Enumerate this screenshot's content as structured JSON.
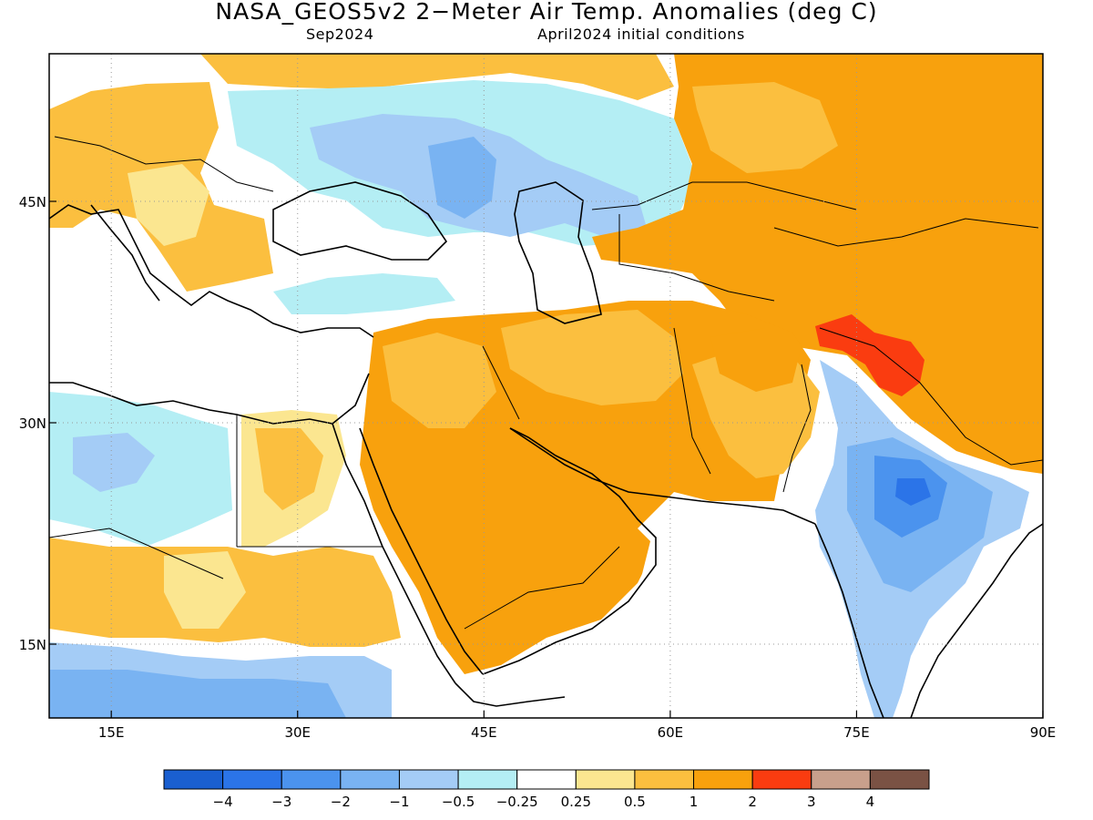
{
  "title": "NASA_GEOS5v2 2−Meter Air Temp. Anomalies (deg C)",
  "subtitle_left": "Sep2024",
  "subtitle_right": "April2024 initial conditions",
  "map": {
    "lon_range": [
      10,
      90
    ],
    "lat_range": [
      10,
      55
    ],
    "lon_ticks": [
      15,
      30,
      45,
      60,
      75,
      90
    ],
    "lon_tick_labels": [
      "15E",
      "30E",
      "45E",
      "60E",
      "75E",
      "90E"
    ],
    "lat_ticks": [
      15,
      30,
      45
    ],
    "lat_tick_labels": [
      "15N",
      "30N",
      "45N"
    ],
    "grid": "dotted"
  },
  "colorbar": {
    "colors": [
      "#1a5fd0",
      "#2b74e8",
      "#4b93ee",
      "#79b3f2",
      "#a4ccf6",
      "#b4eef4",
      "#ffffff",
      "#fbe690",
      "#fbbf3f",
      "#f8a10d",
      "#fa3c10",
      "#c8a08c",
      "#7a5244"
    ],
    "labels": [
      "−4",
      "−3",
      "−2",
      "−1",
      "−0.5",
      "−0.25",
      "0.25",
      "0.5",
      "1",
      "2",
      "3",
      "4"
    ]
  }
}
